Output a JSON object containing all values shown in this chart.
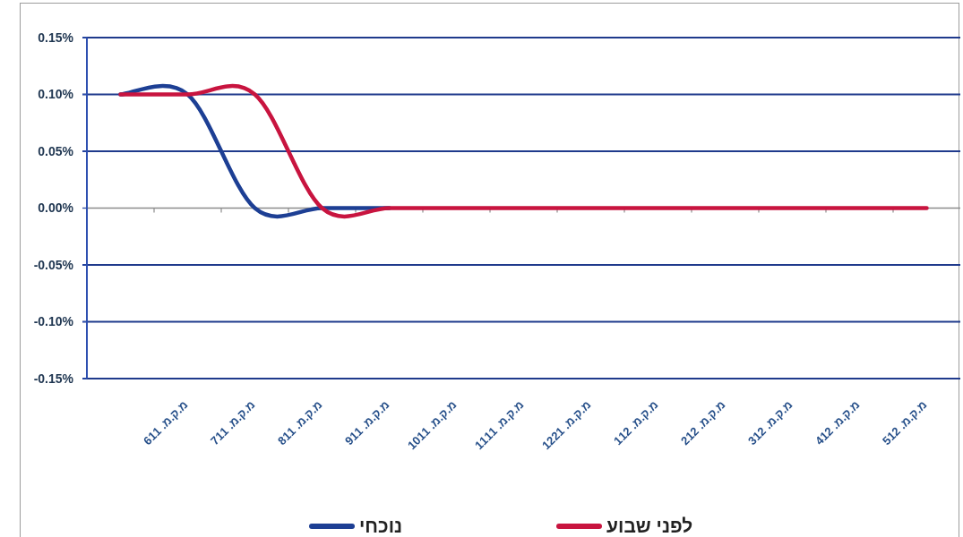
{
  "chart_data": {
    "type": "line",
    "categories": [
      null,
      "מ.ק.מ. 611",
      "מ.ק.מ. 711",
      "מ.ק.מ. 811",
      "מ.ק.מ. 911",
      "מ.ק.מ. 1011",
      "מ.ק.מ. 1111",
      "מ.ק.מ. 1221",
      "מ.ק.מ. 112",
      "מ.ק.מ. 212",
      "מ.ק.מ. 312",
      "מ.ק.מ. 412",
      "מ.ק.מ. 512"
    ],
    "series": [
      {
        "name": "נוכחי",
        "color": "#1d3f94",
        "values": [
          0.1,
          0.1,
          0,
          0,
          0,
          null,
          null,
          null,
          null,
          null,
          null,
          null,
          null
        ]
      },
      {
        "name": "לפני שבוע",
        "color": "#c8143f",
        "values": [
          0.1,
          0.1,
          0.1,
          0,
          0,
          0,
          0,
          0,
          0,
          0,
          0,
          0,
          0
        ]
      }
    ],
    "ylim": [
      -0.15,
      0.15
    ],
    "yticks": [
      {
        "value": -0.15,
        "label": "-0.15%"
      },
      {
        "value": -0.1,
        "label": "-0.10%"
      },
      {
        "value": -0.05,
        "label": "-0.05%"
      },
      {
        "value": 0,
        "label": "0.00%"
      },
      {
        "value": 0.05,
        "label": "0.05%"
      },
      {
        "value": 0.1,
        "label": "0.10%"
      },
      {
        "value": 0.15,
        "label": "0.15%"
      }
    ],
    "grid": "y",
    "legend": "bottom",
    "marker": "none",
    "line_style": "solid"
  }
}
